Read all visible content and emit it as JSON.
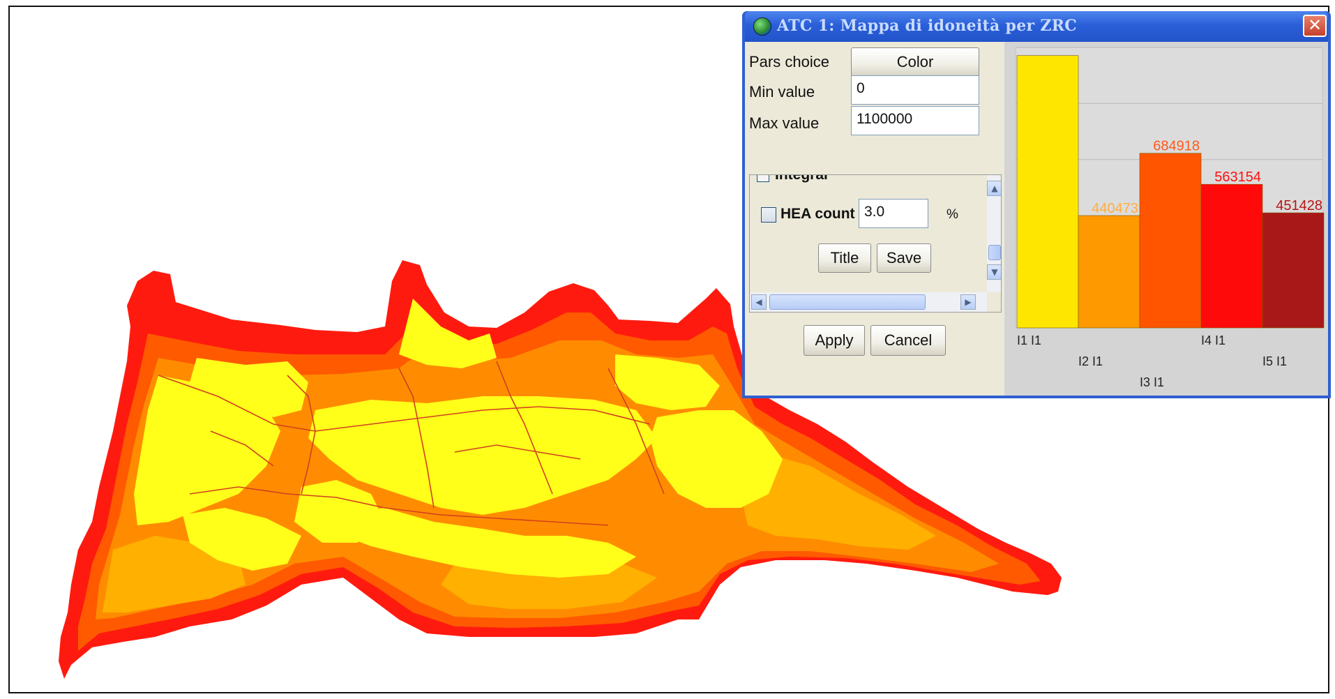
{
  "dialog": {
    "title": "ATC 1: Mappa di idoneità per ZRC",
    "close_symbol": "✕",
    "pars_choice_label": "Pars choice",
    "color_button": "Color",
    "min_label": "Min value",
    "min_value": "0",
    "max_label": "Max value",
    "max_value": "1100000",
    "hidden_checkbox_label": "Integral",
    "hea_label": "HEA count",
    "hea_value": "3.0",
    "percent_symbol": "%",
    "title_button": "Title",
    "save_button": "Save",
    "apply_button": "Apply",
    "cancel_button": "Cancel",
    "scroll_up_icon": "up-arrow",
    "scroll_down_icon": "down-arrow",
    "scroll_left_icon": "left-arrow",
    "scroll_right_icon": "right-arrow"
  },
  "chart_data": {
    "type": "bar",
    "categories": [
      "I1 I1",
      "I2 I1",
      "I3 I1",
      "I4 I1",
      "I5 I1"
    ],
    "values": [
      1068000,
      440473,
      684918,
      563154,
      451428
    ],
    "value_labels": [
      "",
      "440473",
      "684918",
      "563154",
      "451428"
    ],
    "colors": [
      "#ffe600",
      "#ff9900",
      "#ff5500",
      "#ff0a0a",
      "#a81818"
    ],
    "label_colors": [
      "#ffd000",
      "#ffae40",
      "#ff5a1a",
      "#ff1010",
      "#b81515"
    ],
    "ylim": [
      0,
      1100000
    ],
    "grid": true
  },
  "map": {
    "palette": {
      "red": "#ff1a0f",
      "dark_orange": "#ff5a00",
      "orange": "#ff8c00",
      "light_orange": "#ffb000",
      "yellow": "#ffff1a",
      "border": "#d04020"
    }
  }
}
